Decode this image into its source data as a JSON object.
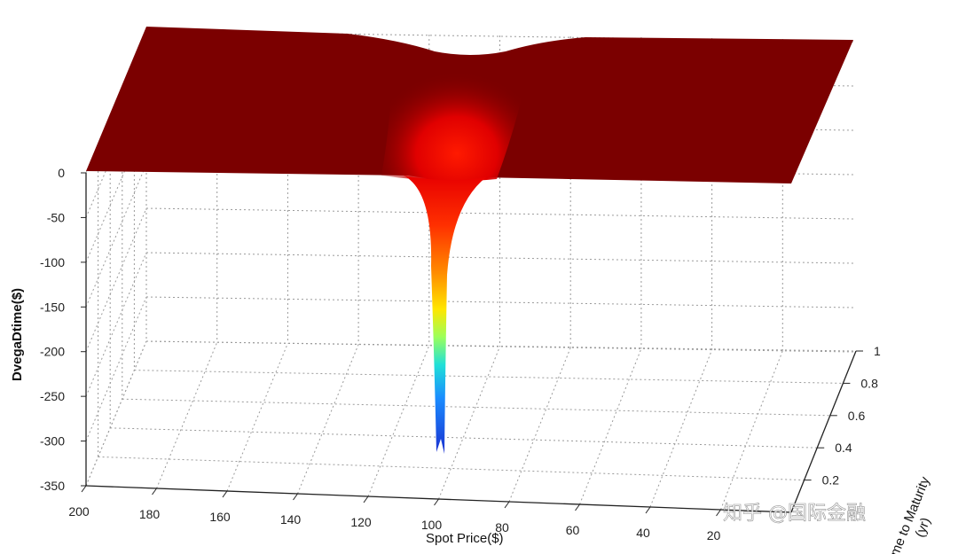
{
  "chart_data": {
    "type": "surface",
    "title": "",
    "xlabel": "Spot Price($)",
    "ylabel": "Time to Maturity\n(yr)",
    "zlabel": "DvegaDtime($)",
    "x_ticks": [
      200,
      180,
      160,
      140,
      120,
      100,
      80,
      60,
      40,
      20
    ],
    "y_ticks": [
      0.2,
      0.4,
      0.6,
      0.8,
      1
    ],
    "z_ticks": [
      0,
      -50,
      -100,
      -150,
      -200,
      -250,
      -300,
      -350
    ],
    "xlim": [
      0,
      200
    ],
    "ylim": [
      0,
      1
    ],
    "zlim": [
      -350,
      0
    ],
    "colormap": "jet",
    "surface_level": 0,
    "spike": {
      "spot_price": 100,
      "min_time": 0,
      "min_value": -315
    },
    "colors": {
      "plateau": "#7b0000",
      "spike_bottom": "#1a2fd0",
      "grid": "#9a9a9a"
    },
    "grid": true
  },
  "watermark": "知乎 @国际金融"
}
